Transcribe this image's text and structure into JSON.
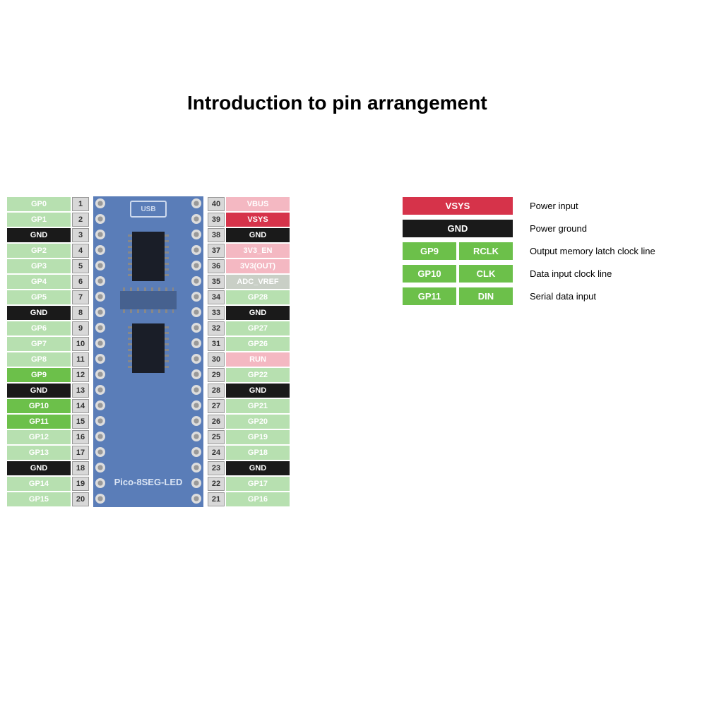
{
  "title": "Introduction to pin arrangement",
  "board_label": "Pico-8SEG-LED",
  "usb_label": "USB",
  "colors": {
    "green_faded": "#b7e0b0",
    "green_active": "#6cc04a",
    "black": "#1a1a1a",
    "pink_faded": "#f4b8c2",
    "red_vsys": "#d6334a",
    "gray_faded": "#c9cfc6",
    "board": "#5a7db8",
    "chip": "#1a1e28"
  },
  "left_pins": [
    {
      "num": "1",
      "label": "GP0",
      "bg": "#b7e0b0",
      "txt": "#ffffff"
    },
    {
      "num": "2",
      "label": "GP1",
      "bg": "#b7e0b0",
      "txt": "#ffffff"
    },
    {
      "num": "3",
      "label": "GND",
      "bg": "#1a1a1a",
      "txt": "#ffffff"
    },
    {
      "num": "4",
      "label": "GP2",
      "bg": "#b7e0b0",
      "txt": "#ffffff"
    },
    {
      "num": "5",
      "label": "GP3",
      "bg": "#b7e0b0",
      "txt": "#ffffff"
    },
    {
      "num": "6",
      "label": "GP4",
      "bg": "#b7e0b0",
      "txt": "#ffffff"
    },
    {
      "num": "7",
      "label": "GP5",
      "bg": "#b7e0b0",
      "txt": "#ffffff"
    },
    {
      "num": "8",
      "label": "GND",
      "bg": "#1a1a1a",
      "txt": "#ffffff"
    },
    {
      "num": "9",
      "label": "GP6",
      "bg": "#b7e0b0",
      "txt": "#ffffff"
    },
    {
      "num": "10",
      "label": "GP7",
      "bg": "#b7e0b0",
      "txt": "#ffffff"
    },
    {
      "num": "11",
      "label": "GP8",
      "bg": "#b7e0b0",
      "txt": "#ffffff"
    },
    {
      "num": "12",
      "label": "GP9",
      "bg": "#6cc04a",
      "txt": "#ffffff"
    },
    {
      "num": "13",
      "label": "GND",
      "bg": "#1a1a1a",
      "txt": "#ffffff"
    },
    {
      "num": "14",
      "label": "GP10",
      "bg": "#6cc04a",
      "txt": "#ffffff"
    },
    {
      "num": "15",
      "label": "GP11",
      "bg": "#6cc04a",
      "txt": "#ffffff"
    },
    {
      "num": "16",
      "label": "GP12",
      "bg": "#b7e0b0",
      "txt": "#ffffff"
    },
    {
      "num": "17",
      "label": "GP13",
      "bg": "#b7e0b0",
      "txt": "#ffffff"
    },
    {
      "num": "18",
      "label": "GND",
      "bg": "#1a1a1a",
      "txt": "#ffffff"
    },
    {
      "num": "19",
      "label": "GP14",
      "bg": "#b7e0b0",
      "txt": "#ffffff"
    },
    {
      "num": "20",
      "label": "GP15",
      "bg": "#b7e0b0",
      "txt": "#ffffff"
    }
  ],
  "right_pins": [
    {
      "num": "40",
      "label": "VBUS",
      "bg": "#f4b8c2",
      "txt": "#ffffff"
    },
    {
      "num": "39",
      "label": "VSYS",
      "bg": "#d6334a",
      "txt": "#ffffff"
    },
    {
      "num": "38",
      "label": "GND",
      "bg": "#1a1a1a",
      "txt": "#ffffff"
    },
    {
      "num": "37",
      "label": "3V3_EN",
      "bg": "#f4b8c2",
      "txt": "#ffffff"
    },
    {
      "num": "36",
      "label": "3V3(OUT)",
      "bg": "#f4b8c2",
      "txt": "#ffffff"
    },
    {
      "num": "35",
      "label": "ADC_VREF",
      "bg": "#c9cfc6",
      "txt": "#ffffff"
    },
    {
      "num": "34",
      "label": "GP28",
      "bg": "#b7e0b0",
      "txt": "#ffffff"
    },
    {
      "num": "33",
      "label": "GND",
      "bg": "#1a1a1a",
      "txt": "#ffffff"
    },
    {
      "num": "32",
      "label": "GP27",
      "bg": "#b7e0b0",
      "txt": "#ffffff"
    },
    {
      "num": "31",
      "label": "GP26",
      "bg": "#b7e0b0",
      "txt": "#ffffff"
    },
    {
      "num": "30",
      "label": "RUN",
      "bg": "#f4b8c2",
      "txt": "#ffffff"
    },
    {
      "num": "29",
      "label": "GP22",
      "bg": "#b7e0b0",
      "txt": "#ffffff"
    },
    {
      "num": "28",
      "label": "GND",
      "bg": "#1a1a1a",
      "txt": "#ffffff"
    },
    {
      "num": "27",
      "label": "GP21",
      "bg": "#b7e0b0",
      "txt": "#ffffff"
    },
    {
      "num": "26",
      "label": "GP20",
      "bg": "#b7e0b0",
      "txt": "#ffffff"
    },
    {
      "num": "25",
      "label": "GP19",
      "bg": "#b7e0b0",
      "txt": "#ffffff"
    },
    {
      "num": "24",
      "label": "GP18",
      "bg": "#b7e0b0",
      "txt": "#ffffff"
    },
    {
      "num": "23",
      "label": "GND",
      "bg": "#1a1a1a",
      "txt": "#ffffff"
    },
    {
      "num": "22",
      "label": "GP17",
      "bg": "#b7e0b0",
      "txt": "#ffffff"
    },
    {
      "num": "21",
      "label": "GP16",
      "bg": "#b7e0b0",
      "txt": "#ffffff"
    }
  ],
  "legend": [
    {
      "type": "wide",
      "boxes": [
        {
          "label": "VSYS",
          "bg": "#d6334a"
        }
      ],
      "desc": "Power input"
    },
    {
      "type": "wide",
      "boxes": [
        {
          "label": "GND",
          "bg": "#1a1a1a"
        }
      ],
      "desc": "Power ground"
    },
    {
      "type": "pair",
      "boxes": [
        {
          "label": "GP9",
          "bg": "#6cc04a"
        },
        {
          "label": "RCLK",
          "bg": "#6cc04a"
        }
      ],
      "desc": "Output memory latch clock line"
    },
    {
      "type": "pair",
      "boxes": [
        {
          "label": "GP10",
          "bg": "#6cc04a"
        },
        {
          "label": "CLK",
          "bg": "#6cc04a"
        }
      ],
      "desc": "Data input clock line"
    },
    {
      "type": "pair",
      "boxes": [
        {
          "label": "GP11",
          "bg": "#6cc04a"
        },
        {
          "label": "DIN",
          "bg": "#6cc04a"
        }
      ],
      "desc": "Serial data input"
    }
  ]
}
